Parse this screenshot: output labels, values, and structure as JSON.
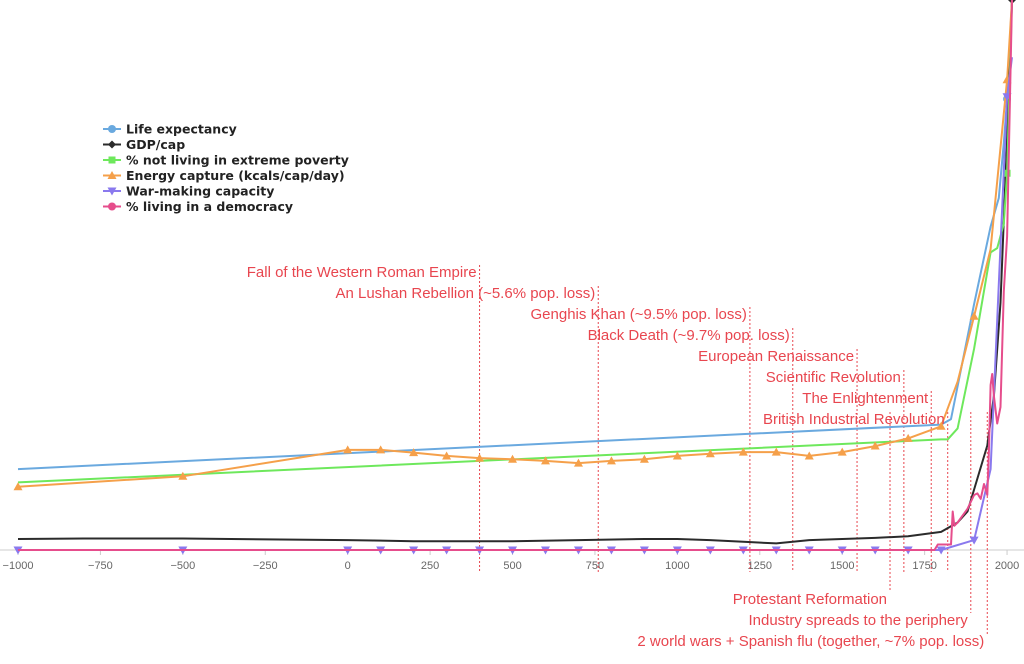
{
  "chart_data": {
    "type": "line",
    "title": "",
    "xlabel": "",
    "ylabel": "",
    "xlim": [
      -1000,
      2015
    ],
    "ylim": [
      0,
      100
    ],
    "x_ticks": [
      -1000,
      -750,
      -500,
      -250,
      0,
      250,
      500,
      750,
      1000,
      1250,
      1500,
      1750,
      2000
    ],
    "x_tick_labels": [
      "−1000",
      "−750",
      "−500",
      "−250",
      "0",
      "250",
      "500",
      "750",
      "1000",
      "1250",
      "1500",
      "1750",
      "2000"
    ],
    "grid": false,
    "legend_position": "top-left",
    "series": [
      {
        "name": "Life expectancy",
        "color": "#6aa9df",
        "marker": "circle",
        "marker_x": [
          2000
        ],
        "points": [
          [
            -1000,
            14.7
          ],
          [
            1800,
            22.8
          ],
          [
            1830,
            23.8
          ],
          [
            1900,
            44.7
          ],
          [
            1950,
            58.8
          ],
          [
            1975,
            64
          ],
          [
            1990,
            74
          ],
          [
            2000,
            82
          ],
          [
            2015,
            100
          ]
        ]
      },
      {
        "name": "GDP/cap",
        "color": "#2b2b2b",
        "marker": "diamond",
        "marker_x": [
          2015
        ],
        "points": [
          [
            -1000,
            2
          ],
          [
            -800,
            2.1
          ],
          [
            -500,
            2.1
          ],
          [
            0,
            1.8
          ],
          [
            200,
            1.6
          ],
          [
            500,
            1.6
          ],
          [
            700,
            1.8
          ],
          [
            900,
            2
          ],
          [
            1000,
            2
          ],
          [
            1100,
            1.8
          ],
          [
            1200,
            1.5
          ],
          [
            1300,
            1.2
          ],
          [
            1400,
            1.8
          ],
          [
            1500,
            2
          ],
          [
            1600,
            2.2
          ],
          [
            1700,
            2.5
          ],
          [
            1800,
            3.3
          ],
          [
            1850,
            5
          ],
          [
            1880,
            7
          ],
          [
            1900,
            11
          ],
          [
            1920,
            15
          ],
          [
            1940,
            19
          ],
          [
            1960,
            28
          ],
          [
            1980,
            45
          ],
          [
            1990,
            60
          ],
          [
            2000,
            75
          ],
          [
            2015,
            100
          ]
        ]
      },
      {
        "name": "% not living in extreme poverty",
        "color": "#6ee85c",
        "marker": "square",
        "marker_x": [
          2000
        ],
        "points": [
          [
            -1000,
            12.3
          ],
          [
            1800,
            20.1
          ],
          [
            1820,
            20.1
          ],
          [
            1850,
            22.1
          ],
          [
            1900,
            36.6
          ],
          [
            1950,
            54.1
          ],
          [
            1970,
            54.9
          ],
          [
            1990,
            59.3
          ],
          [
            2000,
            68.5
          ],
          [
            2015,
            100
          ]
        ]
      },
      {
        "name": "Energy capture (kcals/cap/day)",
        "color": "#f5a04a",
        "marker": "triangle-up",
        "marker_x": [
          -1000,
          -500,
          0,
          100,
          200,
          300,
          400,
          500,
          600,
          700,
          800,
          900,
          1000,
          1100,
          1200,
          1300,
          1400,
          1500,
          1600,
          1700,
          1800,
          1900,
          2000
        ],
        "points": [
          [
            -1000,
            11.5
          ],
          [
            -500,
            13.4
          ],
          [
            0,
            18.2
          ],
          [
            100,
            18.2
          ],
          [
            200,
            17.7
          ],
          [
            300,
            17.1
          ],
          [
            400,
            16.7
          ],
          [
            500,
            16.5
          ],
          [
            600,
            16.2
          ],
          [
            700,
            15.8
          ],
          [
            800,
            16.2
          ],
          [
            900,
            16.5
          ],
          [
            1000,
            17.1
          ],
          [
            1100,
            17.5
          ],
          [
            1200,
            17.8
          ],
          [
            1300,
            17.8
          ],
          [
            1400,
            17.1
          ],
          [
            1500,
            17.8
          ],
          [
            1600,
            18.9
          ],
          [
            1700,
            20.3
          ],
          [
            1800,
            22.5
          ],
          [
            1850,
            30.6
          ],
          [
            1900,
            42.5
          ],
          [
            1950,
            54.7
          ],
          [
            2000,
            85.5
          ],
          [
            2015,
            100
          ]
        ]
      },
      {
        "name": "War-making capacity",
        "color": "#8a79ee",
        "marker": "triangle-down",
        "marker_x": [
          -1000,
          -500,
          0,
          100,
          200,
          300,
          400,
          500,
          600,
          700,
          800,
          900,
          1000,
          1100,
          1200,
          1300,
          1400,
          1500,
          1600,
          1700,
          1800,
          1900,
          2000
        ],
        "points": [
          [
            -1000,
            0
          ],
          [
            1800,
            0
          ],
          [
            1900,
            1.8
          ],
          [
            1950,
            14.7
          ],
          [
            2000,
            82.4
          ],
          [
            2015,
            89.6
          ]
        ]
      },
      {
        "name": "% living in a democracy",
        "color": "#e64d8c",
        "marker": "circle",
        "marker_x": [],
        "points": [
          [
            -1000,
            0
          ],
          [
            1780,
            0
          ],
          [
            1790,
            1
          ],
          [
            1800,
            1
          ],
          [
            1830,
            1
          ],
          [
            1835,
            7
          ],
          [
            1840,
            4.4
          ],
          [
            1850,
            5
          ],
          [
            1880,
            7.5
          ],
          [
            1900,
            10
          ],
          [
            1910,
            10.3
          ],
          [
            1920,
            9.3
          ],
          [
            1930,
            12
          ],
          [
            1940,
            10
          ],
          [
            1945,
            18
          ],
          [
            1950,
            30
          ],
          [
            1955,
            32
          ],
          [
            1960,
            28
          ],
          [
            1970,
            23
          ],
          [
            1980,
            26
          ],
          [
            1990,
            47
          ],
          [
            2000,
            57
          ],
          [
            2015,
            100
          ]
        ]
      }
    ],
    "annotations": [
      {
        "label": "Fall of the Western Roman Empire",
        "x": 400,
        "above": true
      },
      {
        "label": "An Lushan Rebellion (~5.6% pop. loss)",
        "x": 760,
        "above": true
      },
      {
        "label": "Genghis Khan (~9.5% pop. loss)",
        "x": 1220,
        "above": true
      },
      {
        "label": "Black Death (~9.7% pop. loss)",
        "x": 1350,
        "above": true
      },
      {
        "label": "European Renaissance",
        "x": 1545,
        "above": true
      },
      {
        "label": "Scientific Revolution",
        "x": 1687,
        "above": true
      },
      {
        "label": "The Enlightenment",
        "x": 1770,
        "above": true
      },
      {
        "label": "British Industrial Revolution",
        "x": 1820,
        "above": true
      },
      {
        "label": "Protestant Reformation",
        "x": 1645,
        "above": false
      },
      {
        "label": "Industry spreads to the periphery",
        "x": 1890,
        "above": false
      },
      {
        "label": "2 world wars + Spanish flu (together, ~7%  pop. loss)",
        "x": 1940,
        "above": false
      }
    ]
  }
}
